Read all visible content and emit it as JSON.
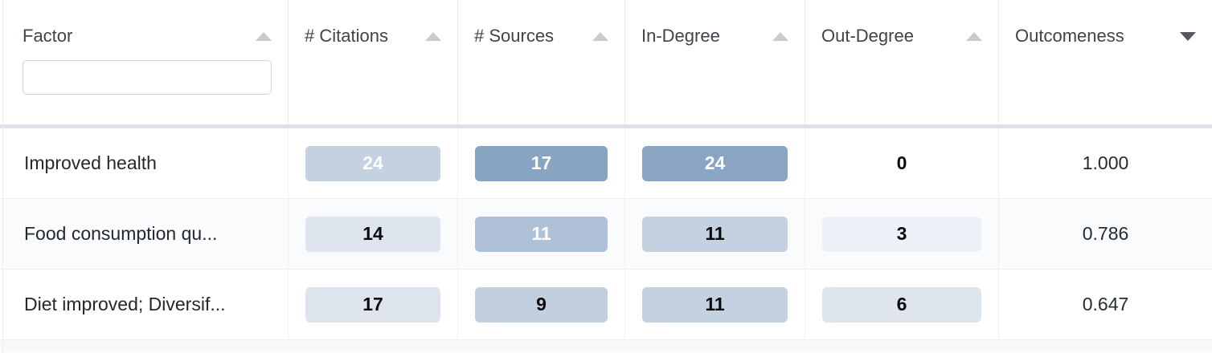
{
  "table": {
    "header": {
      "columns": [
        {
          "label": "Factor",
          "sort_dir": "up",
          "sort_active": false,
          "has_filter": true
        },
        {
          "label": "# Citations",
          "sort_dir": "up",
          "sort_active": false
        },
        {
          "label": "# Sources",
          "sort_dir": "up",
          "sort_active": false
        },
        {
          "label": "In-Degree",
          "sort_dir": "up",
          "sort_active": false
        },
        {
          "label": "Out-Degree",
          "sort_dir": "up",
          "sort_active": false
        },
        {
          "label": "Outcomeness",
          "sort_dir": "down",
          "sort_active": true
        }
      ],
      "factor_filter": {
        "value": ""
      }
    },
    "rows": [
      {
        "factor": "Improved health",
        "citations": {
          "value": "24",
          "bg": "#c3d1e1",
          "color": "#ffffff"
        },
        "sources": {
          "value": "17",
          "bg": "#88a4c3",
          "color": "#ffffff"
        },
        "in_degree": {
          "value": "24",
          "bg": "#8aa5c4",
          "color": "#ffffff"
        },
        "out_degree": {
          "value": "0",
          "bg": "transparent",
          "color": "#0a0a0a"
        },
        "outcomeness": "1.000"
      },
      {
        "factor": "Food consumption qu...",
        "citations": {
          "value": "14",
          "bg": "#dde4ee",
          "color": "#0a0a0a"
        },
        "sources": {
          "value": "11",
          "bg": "#aec1d8",
          "color": "#ffffff"
        },
        "in_degree": {
          "value": "11",
          "bg": "#c3d1e1",
          "color": "#0a0a0a"
        },
        "out_degree": {
          "value": "3",
          "bg": "#edf1f7",
          "color": "#0a0a0a"
        },
        "outcomeness": "0.786"
      },
      {
        "factor": "Diet improved; Diversif...",
        "citations": {
          "value": "17",
          "bg": "#dde4ee",
          "color": "#0a0a0a"
        },
        "sources": {
          "value": "9",
          "bg": "#c2cfdf",
          "color": "#0a0a0a"
        },
        "in_degree": {
          "value": "11",
          "bg": "#c4d1e1",
          "color": "#0a0a0a"
        },
        "out_degree": {
          "value": "6",
          "bg": "#dee5ef",
          "color": "#0a0a0a"
        },
        "outcomeness": "0.647"
      }
    ]
  },
  "colors": {
    "sort_icon_inactive": "#c8ccd0",
    "sort_icon_active": "#55595e",
    "header_text": "#3f434c",
    "row_alt_bg": "#fafbfc",
    "header_freeze_bar": "#dce1ea",
    "heat_strong": "#88a4c3",
    "heat_medium": "#aec1d8",
    "heat_light": "#c3d1e1",
    "heat_faint": "#dde4ee",
    "heat_minimal": "#edf1f7"
  }
}
